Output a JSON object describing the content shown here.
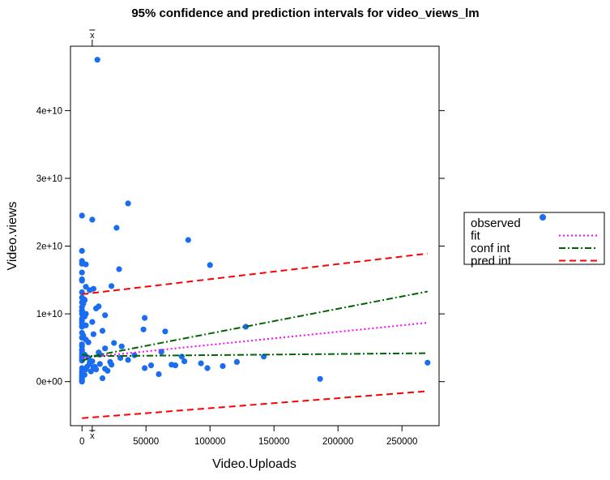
{
  "chart_data": {
    "type": "scatter",
    "title": "95% confidence and prediction intervals for video_views_lm",
    "xlabel": "Video.Uploads",
    "ylabel": "Video.views",
    "xlim": [
      -9000,
      279000
    ],
    "ylim": [
      -6500000000.0,
      49500000000.0
    ],
    "x_ticks": [
      0,
      50000,
      100000,
      150000,
      200000,
      250000
    ],
    "x_tick_labels": [
      "0",
      "50000",
      "100000",
      "150000",
      "200000",
      "250000"
    ],
    "y_ticks": [
      0,
      10000000000,
      20000000000,
      30000000000,
      40000000000
    ],
    "y_tick_labels": [
      "0e+00",
      "1e+10",
      "2e+10",
      "3e+10",
      "4e+10"
    ],
    "xbar_label": "x",
    "xbar_value": 8000,
    "legend": {
      "position": "right",
      "entries": [
        {
          "label": "observed",
          "color": "#1a6cf0",
          "style": "point"
        },
        {
          "label": "fit",
          "color": "#ff00ff",
          "style": "dotted"
        },
        {
          "label": "conf int",
          "color": "#006400",
          "style": "dashdot"
        },
        {
          "label": "pred int",
          "color": "#ff0000",
          "style": "dashed"
        }
      ]
    },
    "lines": [
      {
        "name": "fit",
        "x": [
          0,
          270000
        ],
        "y": [
          3500000000,
          8700000000
        ]
      },
      {
        "name": "conf int",
        "x": [
          0,
          8000,
          270000
        ],
        "y": [
          3000000000,
          3750000000,
          13300000000
        ]
      },
      {
        "name": "conf int",
        "x": [
          0,
          8000,
          270000
        ],
        "y": [
          4000000000,
          3750000000,
          4200000000
        ]
      },
      {
        "name": "pred int",
        "x": [
          0,
          270000
        ],
        "y": [
          12900000000,
          18900000000
        ]
      },
      {
        "name": "pred int",
        "x": [
          0,
          270000
        ],
        "y": [
          -5400000000,
          -1400000000
        ]
      }
    ],
    "points": {
      "x": [
        12000,
        0,
        8000,
        36000,
        27000,
        83000,
        0,
        0,
        0,
        3000,
        29000,
        100000,
        6000,
        0,
        0,
        3000,
        23000,
        9000,
        0,
        2000,
        13000,
        0,
        11000,
        0,
        0,
        2000,
        18000,
        8000,
        0,
        49000,
        16000,
        0,
        3000,
        48000,
        65000,
        9000,
        0,
        0,
        3000,
        25000,
        128000,
        0,
        5000,
        18000,
        0,
        0,
        31000,
        13000,
        0,
        41000,
        0,
        62000,
        142000,
        0,
        78000,
        36000,
        30000,
        22000,
        0,
        6000,
        14000,
        23000,
        70000,
        73000,
        80000,
        93000,
        110000,
        121000,
        54000,
        49000,
        60000,
        98000,
        0,
        10000,
        0,
        3000,
        7000,
        270000,
        186000,
        0,
        0,
        0,
        0,
        0,
        0,
        2000,
        4000,
        8000,
        11000,
        16000,
        20000,
        0,
        0,
        1000,
        2000,
        5000,
        6000,
        9000,
        14000,
        18000,
        0,
        0,
        0,
        1000,
        3000,
        0,
        0,
        2000,
        0,
        0
      ],
      "y": [
        47500000000,
        24500000000,
        23900000000,
        26300000000,
        22700000000,
        20900000000,
        19300000000,
        17800000000,
        17400000000,
        17300000000,
        16600000000,
        17200000000,
        13500000000,
        16100000000,
        15100000000,
        14000000000,
        14100000000,
        13700000000,
        12400000000,
        12000000000,
        11100000000,
        11700000000,
        10800000000,
        10500000000,
        10000000000,
        9600000000,
        9800000000,
        8800000000,
        8200000000,
        9400000000,
        7500000000,
        8100000000,
        8300000000,
        7700000000,
        7400000000,
        7000000000,
        7200000000,
        6500000000,
        6200000000,
        5700000000,
        8100000000,
        5200000000,
        5800000000,
        4900000000,
        4700000000,
        4200000000,
        5200000000,
        4300000000,
        3900000000,
        3900000000,
        3600000000,
        4400000000,
        3700000000,
        3300000000,
        3700000000,
        3200000000,
        3500000000,
        2900000000,
        3100000000,
        2600000000,
        4000000000,
        2500000000,
        2500000000,
        2400000000,
        3000000000,
        2700000000,
        2300000000,
        2900000000,
        2400000000,
        2000000000,
        1100000000,
        2000000000,
        1500000000,
        2200000000,
        1200000000,
        1800000000,
        1500000000,
        2800000000,
        400000000,
        900000000,
        600000000,
        300000000,
        100000000,
        0,
        2000000000,
        1000000000,
        2200000000,
        3000000000,
        1800000000,
        500000000,
        1600000000,
        4600000000,
        5500000000,
        6800000000,
        4000000000,
        3500000000,
        2800000000,
        2100000000,
        2600000000,
        1900000000,
        8600000000,
        9300000000,
        10400000000,
        11500000000,
        10000000000,
        13200000000,
        14900000000,
        12100000000,
        11000000000,
        9000000000
      ]
    }
  }
}
